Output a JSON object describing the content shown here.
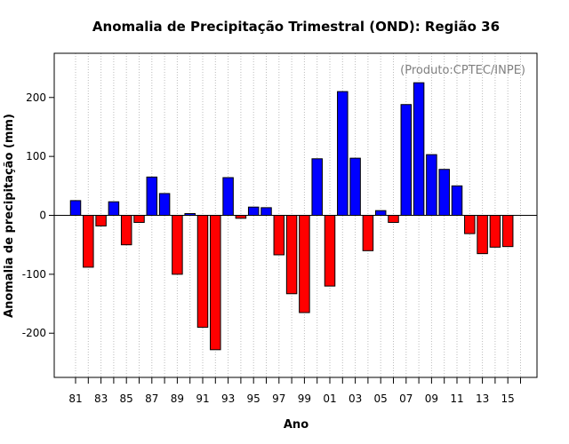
{
  "chart_data": {
    "type": "bar",
    "title": "Anomalia de Precipitação Trimestral (OND): Região 36",
    "xlabel": "Ano",
    "ylabel": "Anomalia de precipitação (mm)",
    "credit": "(Produto:CPTEC/INPE)",
    "ylim": [
      -275,
      275
    ],
    "yticks": [
      -200,
      -100,
      0,
      100,
      200
    ],
    "positive_color": "#0000ff",
    "negative_color": "#ff0000",
    "categories": [
      "81",
      "82",
      "83",
      "84",
      "85",
      "86",
      "87",
      "88",
      "89",
      "90",
      "91",
      "92",
      "93",
      "94",
      "95",
      "96",
      "97",
      "98",
      "99",
      "00",
      "01",
      "02",
      "03",
      "04",
      "05",
      "06",
      "07",
      "08",
      "09",
      "10",
      "11",
      "12",
      "13",
      "14",
      "15",
      "16"
    ],
    "xtick_labels": [
      "81",
      "83",
      "85",
      "87",
      "89",
      "91",
      "93",
      "95",
      "97",
      "99",
      "01",
      "03",
      "05",
      "07",
      "09",
      "11",
      "13",
      "15"
    ],
    "values": [
      25,
      -88,
      -18,
      23,
      -50,
      -12,
      65,
      37,
      -100,
      3,
      -190,
      -228,
      64,
      -5,
      14,
      13,
      -67,
      -133,
      -165,
      96,
      -120,
      210,
      97,
      -60,
      8,
      -12,
      188,
      225,
      103,
      78,
      50,
      -31,
      -65,
      -54,
      -53,
      0
    ],
    "grid": "vertical dotted"
  }
}
